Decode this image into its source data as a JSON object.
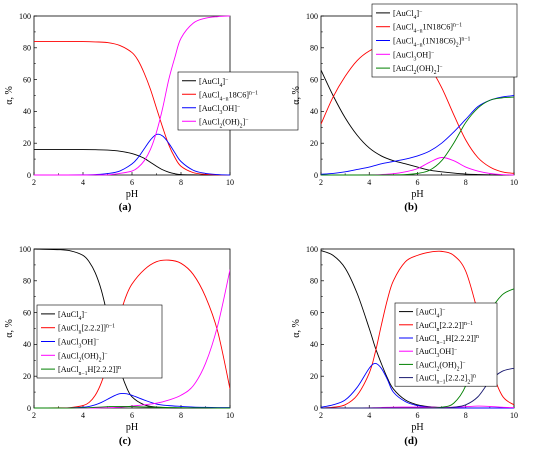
{
  "panel_captions": [
    "(a)",
    "(b)",
    "(c)",
    "(d)"
  ],
  "chart_data": [
    {
      "type": "line",
      "panel": "(a)",
      "xlabel": "pH",
      "ylabel": "α, %",
      "xlim": [
        2,
        10
      ],
      "ylim": [
        0,
        100
      ],
      "xticks": [
        "2",
        "4",
        "6",
        "8",
        "10"
      ],
      "yticks": [
        "0",
        "20",
        "40",
        "60",
        "80",
        "100"
      ],
      "legend_position": "center-right",
      "x": [
        2,
        3,
        4,
        4.5,
        5,
        5.5,
        6,
        6.25,
        6.5,
        6.75,
        7,
        7.25,
        7.5,
        7.75,
        8,
        8.5,
        9,
        9.5,
        10
      ],
      "series": [
        {
          "name": "[AuCl4]−",
          "label_parts": [
            [
              "[AuCl",
              "n"
            ],
            [
              "4",
              "sub"
            ],
            [
              "]",
              "n"
            ],
            [
              "−",
              "sup"
            ]
          ],
          "color": "#000000",
          "values": [
            16,
            16,
            16,
            15.9,
            15.7,
            15,
            13.5,
            12.2,
            10.5,
            8,
            5.5,
            3.3,
            1.8,
            0.8,
            0.3,
            0.1,
            0,
            0,
            0
          ]
        },
        {
          "name": "[AuCl4−n18C6]n−1",
          "label_parts": [
            [
              "[AuCl",
              "n"
            ],
            [
              "4−n",
              "sub"
            ],
            [
              "18C6]",
              "n"
            ],
            [
              "n−1",
              "sup"
            ]
          ],
          "color": "#ff0000",
          "values": [
            84,
            84,
            83.9,
            83.7,
            83.3,
            81.5,
            77,
            72,
            64,
            54,
            42,
            30,
            19,
            11,
            5.5,
            1.5,
            0.4,
            0.1,
            0
          ]
        },
        {
          "name": "[AuCl3OH]−",
          "label_parts": [
            [
              "[AuCl",
              "n"
            ],
            [
              "3",
              "sub"
            ],
            [
              "OH]",
              "n"
            ],
            [
              "−",
              "sup"
            ]
          ],
          "color": "#0000ff",
          "values": [
            0,
            0,
            0.1,
            0.3,
            0.9,
            2.5,
            7,
            11,
            16.5,
            22,
            25.5,
            24.5,
            20,
            14,
            8.5,
            3,
            1,
            0.3,
            0
          ]
        },
        {
          "name": "[AuCl2(OH)2]−",
          "label_parts": [
            [
              "[AuCl",
              "n"
            ],
            [
              "2",
              "sub"
            ],
            [
              "(OH)",
              "n"
            ],
            [
              "2",
              "sub"
            ],
            [
              "]",
              "n"
            ],
            [
              "−",
              "sup"
            ]
          ],
          "color": "#ff00ff",
          "values": [
            0,
            0,
            0,
            0.1,
            0.1,
            1,
            2.5,
            4.8,
            9,
            16,
            27,
            42,
            60,
            74,
            86,
            95.5,
            98.6,
            99.6,
            100
          ]
        }
      ]
    },
    {
      "type": "line",
      "panel": "(b)",
      "xlabel": "pH",
      "ylabel": "α, %",
      "xlim": [
        2,
        10
      ],
      "ylim": [
        0,
        100
      ],
      "xticks": [
        "2",
        "4",
        "6",
        "8",
        "10"
      ],
      "yticks": [
        "0",
        "20",
        "40",
        "60",
        "80",
        "100"
      ],
      "legend_position": "top-right",
      "x": [
        2,
        2.5,
        3,
        3.5,
        4,
        4.5,
        5,
        5.5,
        6,
        6.5,
        7,
        7.5,
        8,
        8.5,
        9,
        9.5,
        10
      ],
      "series": [
        {
          "name": "[AuCl4]−",
          "label_parts": [
            [
              "[AuCl",
              "n"
            ],
            [
              "4",
              "sub"
            ],
            [
              "]",
              "n"
            ],
            [
              "−",
              "sup"
            ]
          ],
          "color": "#000000",
          "values": [
            66,
            50,
            36,
            25,
            17,
            12,
            9,
            7,
            5,
            3,
            2,
            1.2,
            0.6,
            0.3,
            0.1,
            0,
            0
          ]
        },
        {
          "name": "[AuCl4−n1N18C6]n−1",
          "label_parts": [
            [
              "[AuCl",
              "n"
            ],
            [
              "4−n",
              "sub"
            ],
            [
              "1N18C6]",
              "n"
            ],
            [
              "n−1",
              "sup"
            ]
          ],
          "color": "#ff0000",
          "values": [
            32,
            49,
            62,
            72,
            78,
            81,
            81,
            80,
            76,
            68,
            55,
            38,
            22,
            11,
            5,
            2,
            1
          ]
        },
        {
          "name": "[AuCl4−n(1N18C6)2]n−1",
          "label_parts": [
            [
              "[AuCl",
              "n"
            ],
            [
              "4−n",
              "sub"
            ],
            [
              "(1N18C6)",
              "n"
            ],
            [
              "2",
              "sub"
            ],
            [
              "]",
              "n"
            ],
            [
              "n−1",
              "sup"
            ]
          ],
          "color": "#0000ff",
          "values": [
            0.5,
            1,
            2,
            3.5,
            5,
            7,
            8.5,
            10,
            12,
            15,
            20,
            27,
            35,
            43,
            47,
            49,
            50
          ]
        },
        {
          "name": "[AuCl3OH]−",
          "label_parts": [
            [
              "[AuCl",
              "n"
            ],
            [
              "3",
              "sub"
            ],
            [
              "OH]",
              "n"
            ],
            [
              "−",
              "sup"
            ]
          ],
          "color": "#ff00ff",
          "values": [
            0,
            0,
            0,
            0,
            0.1,
            0.3,
            0.8,
            2,
            4,
            8,
            11,
            9,
            5,
            2.5,
            1,
            0.3,
            0
          ]
        },
        {
          "name": "[AuCl2(OH)2]−",
          "label_parts": [
            [
              "[AuCl",
              "n"
            ],
            [
              "2",
              "sub"
            ],
            [
              "(OH)",
              "n"
            ],
            [
              "2",
              "sub"
            ],
            [
              "]",
              "n"
            ],
            [
              "−",
              "sup"
            ]
          ],
          "color": "#008000",
          "values": [
            0,
            0,
            0,
            0,
            0,
            0,
            0.1,
            0.3,
            1,
            3,
            9,
            20,
            33,
            42,
            47,
            48.5,
            49
          ]
        }
      ]
    },
    {
      "type": "line",
      "panel": "(c)",
      "xlabel": "pH",
      "ylabel": "α, %",
      "xlim": [
        2,
        10
      ],
      "ylim": [
        0,
        100
      ],
      "xticks": [
        "2",
        "4",
        "6",
        "8",
        "10"
      ],
      "yticks": [
        "0",
        "20",
        "40",
        "60",
        "80",
        "100"
      ],
      "legend_position": "center-left",
      "x": [
        2,
        3,
        3.5,
        4,
        4.25,
        4.5,
        4.75,
        5,
        5.25,
        5.5,
        5.75,
        6,
        6.5,
        7,
        7.5,
        8,
        8.5,
        9,
        9.5,
        10
      ],
      "series": [
        {
          "name": "[AuCl4]−",
          "label_parts": [
            [
              "[AuCl",
              "n"
            ],
            [
              "4",
              "sub"
            ],
            [
              "]",
              "n"
            ],
            [
              "−",
              "sup"
            ]
          ],
          "color": "#000000",
          "values": [
            100,
            99.6,
            98.8,
            96,
            92,
            85,
            74,
            58,
            40,
            25,
            14,
            7,
            2,
            0.6,
            0.2,
            0,
            0,
            0,
            0,
            0
          ]
        },
        {
          "name": "[AuCln[2.2.2]]n−1",
          "label_parts": [
            [
              "[AuCl",
              "n"
            ],
            [
              "n",
              "sub"
            ],
            [
              "[2.2.2]]",
              "n"
            ],
            [
              "n−1",
              "sup"
            ]
          ],
          "color": "#ff0000",
          "values": [
            0,
            0.1,
            0.3,
            1.5,
            3.5,
            8,
            16,
            28,
            44,
            58,
            70,
            78,
            87,
            92,
            93,
            91,
            84,
            70,
            48,
            12
          ]
        },
        {
          "name": "[AuCl3OH]−",
          "label_parts": [
            [
              "[AuCl",
              "n"
            ],
            [
              "3",
              "sub"
            ],
            [
              "OH]",
              "n"
            ],
            [
              "−",
              "sup"
            ]
          ],
          "color": "#0000ff",
          "values": [
            0,
            0,
            0.1,
            0.5,
            1,
            2,
            3.5,
            5.5,
            7.5,
            9,
            9,
            8,
            5,
            2.5,
            1.5,
            1,
            0.6,
            0.4,
            0.3,
            0.3
          ]
        },
        {
          "name": "[AuCl2(OH)2]−",
          "label_parts": [
            [
              "[AuCl",
              "n"
            ],
            [
              "2",
              "sub"
            ],
            [
              "(OH)",
              "n"
            ],
            [
              "2",
              "sub"
            ],
            [
              "]",
              "n"
            ],
            [
              "−",
              "sup"
            ]
          ],
          "color": "#ff00ff",
          "values": [
            0,
            0,
            0,
            0,
            0,
            0,
            0.1,
            0.2,
            0.3,
            0.5,
            0.8,
            1.2,
            2,
            3,
            5,
            8,
            14,
            28,
            52,
            87
          ]
        },
        {
          "name": "[AuCln−1H[2.2.2]]n",
          "label_parts": [
            [
              "[AuCl",
              "n"
            ],
            [
              "n−1",
              "sub"
            ],
            [
              "H[2.2.2]]",
              "n"
            ],
            [
              "n",
              "sup"
            ]
          ],
          "color": "#008000",
          "values": [
            0,
            0,
            0,
            0.1,
            0.2,
            0.4,
            0.6,
            0.8,
            1,
            1,
            1,
            0.9,
            0.7,
            0.5,
            0.3,
            0.2,
            0.1,
            0.1,
            0,
            0
          ]
        }
      ]
    },
    {
      "type": "line",
      "panel": "(d)",
      "xlabel": "pH",
      "ylabel": "α, %",
      "xlim": [
        2,
        10
      ],
      "ylim": [
        0,
        100
      ],
      "xticks": [
        "2",
        "4",
        "6",
        "8",
        "10"
      ],
      "yticks": [
        "0",
        "20",
        "40",
        "60",
        "80",
        "100"
      ],
      "legend_position": "center",
      "x": [
        2,
        2.5,
        3,
        3.5,
        4,
        4.25,
        4.5,
        4.75,
        5,
        5.5,
        6,
        6.5,
        7,
        7.5,
        8,
        8.5,
        9,
        9.5,
        10
      ],
      "series": [
        {
          "name": "[AuCl4]−",
          "label_parts": [
            [
              "[AuCl",
              "n"
            ],
            [
              "4",
              "sub"
            ],
            [
              "]",
              "n"
            ],
            [
              "−",
              "sup"
            ]
          ],
          "color": "#000000",
          "values": [
            99,
            96,
            88,
            72,
            50,
            38,
            28,
            19,
            12,
            5,
            2,
            0.8,
            0.3,
            0.1,
            0,
            0,
            0,
            0,
            0
          ]
        },
        {
          "name": "[AuCln[2.2.2]]n−1",
          "label_parts": [
            [
              "[AuCl",
              "n"
            ],
            [
              "n",
              "sub"
            ],
            [
              "[2.2.2]]",
              "n"
            ],
            [
              "n−1",
              "sup"
            ]
          ],
          "color": "#ff0000",
          "values": [
            0,
            0.5,
            2,
            8,
            22,
            35,
            52,
            68,
            80,
            92,
            96,
            98,
            98.5,
            96,
            86,
            60,
            28,
            8,
            2
          ]
        },
        {
          "name": "[AuCln−1H[2.2.2]]n",
          "label_parts": [
            [
              "[AuCl",
              "n"
            ],
            [
              "n−1",
              "sub"
            ],
            [
              "H[2.2.2]]",
              "n"
            ],
            [
              "n",
              "sup"
            ]
          ],
          "color": "#0000ff",
          "values": [
            0.5,
            2,
            5,
            13,
            25,
            28,
            25,
            18,
            10,
            4,
            1.5,
            0.5,
            0.2,
            0.1,
            0,
            0,
            0,
            0,
            0
          ]
        },
        {
          "name": "[AuCl3OH]−",
          "label_parts": [
            [
              "[AuCl",
              "n"
            ],
            [
              "3",
              "sub"
            ],
            [
              "OH]",
              "n"
            ],
            [
              "−",
              "sup"
            ]
          ],
          "color": "#ff00ff",
          "values": [
            0,
            0,
            0,
            0,
            0.1,
            0.2,
            0.3,
            0.4,
            0.5,
            0.6,
            0.6,
            0.5,
            0.4,
            0.5,
            0.8,
            1.2,
            1,
            0.5,
            0.2
          ]
        },
        {
          "name": "[AuCl2(OH)2]−",
          "label_parts": [
            [
              "[AuCl",
              "n"
            ],
            [
              "2",
              "sub"
            ],
            [
              "(OH)",
              "n"
            ],
            [
              "2",
              "sub"
            ],
            [
              "]",
              "n"
            ],
            [
              "−",
              "sup"
            ]
          ],
          "color": "#008000",
          "values": [
            0,
            0,
            0,
            0,
            0,
            0,
            0,
            0,
            0,
            0,
            0,
            0.1,
            0.5,
            3,
            14,
            38,
            60,
            71,
            75
          ]
        },
        {
          "name": "[AuCln−1[2.2.2]2]n",
          "label_parts": [
            [
              "[AuCl",
              "n"
            ],
            [
              "n−1",
              "sub"
            ],
            [
              "[2.2.2]",
              "n"
            ],
            [
              "2",
              "sub"
            ],
            [
              "]",
              "n"
            ],
            [
              "n",
              "sup"
            ]
          ],
          "color": "#191970",
          "values": [
            0,
            0,
            0,
            0,
            0,
            0,
            0,
            0,
            0,
            0,
            0,
            0,
            0,
            0.5,
            2,
            7,
            17,
            23,
            25
          ]
        }
      ]
    }
  ]
}
